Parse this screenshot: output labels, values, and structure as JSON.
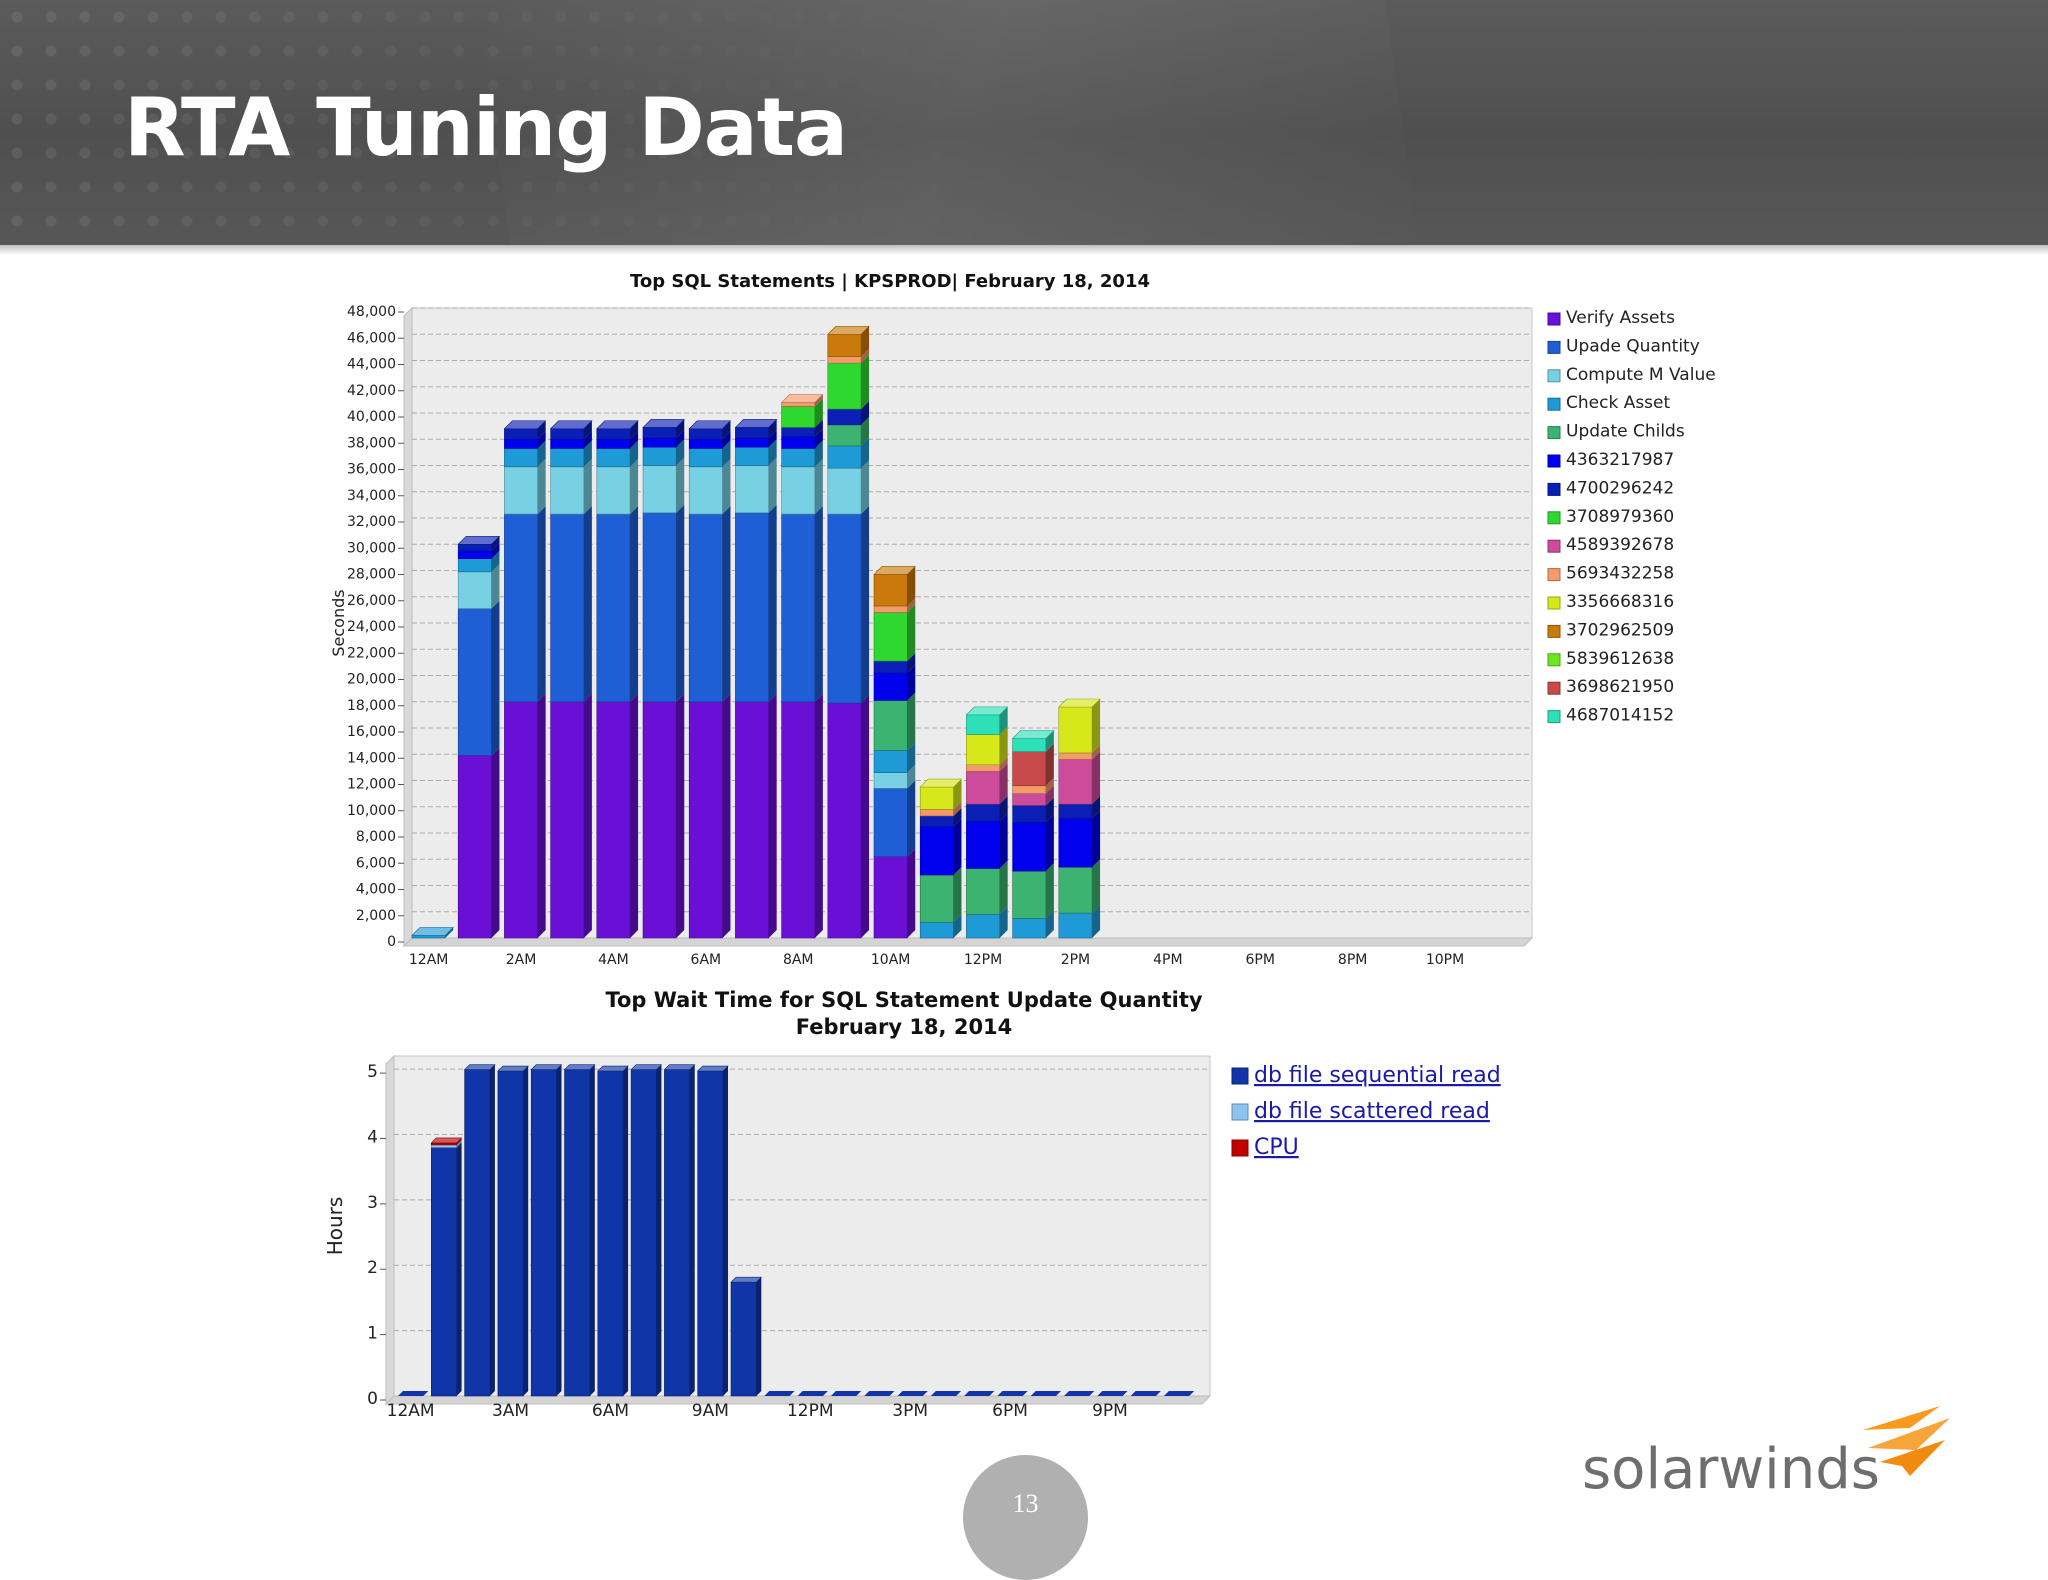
{
  "slide": {
    "title": "RTA Tuning Data",
    "page_number": "13"
  },
  "logo": {
    "text": "solarwinds",
    "colors": {
      "text": "#6e6e6e",
      "flame": "#f79a1e"
    }
  },
  "chart_data": [
    {
      "type": "bar",
      "stacked": true,
      "title": "Top SQL Statements | KPSPROD| February 18, 2014",
      "xlabel": "",
      "ylabel": "Seconds",
      "ylim": [
        0,
        48000
      ],
      "yticks": [
        0,
        2000,
        4000,
        6000,
        8000,
        10000,
        12000,
        14000,
        16000,
        18000,
        20000,
        22000,
        24000,
        26000,
        28000,
        30000,
        32000,
        34000,
        36000,
        38000,
        40000,
        42000,
        44000,
        46000,
        48000
      ],
      "yticks_text": [
        "0",
        "2,000",
        "4,000",
        "6,000",
        "8,000",
        "10,000",
        "12,000",
        "14,000",
        "16,000",
        "18,000",
        "20,000",
        "22,000",
        "24,000",
        "26,000",
        "28,000",
        "30,000",
        "32,000",
        "34,000",
        "36,000",
        "38,000",
        "40,000",
        "42,000",
        "44,000",
        "46,000",
        "48,000"
      ],
      "xtick_labels": [
        "12AM",
        "2AM",
        "4AM",
        "6AM",
        "8AM",
        "10AM",
        "12PM",
        "2PM",
        "4PM",
        "6PM",
        "8PM",
        "10PM"
      ],
      "grid": true,
      "legend_position": "right",
      "categories": [
        "12AM",
        "1AM",
        "2AM",
        "3AM",
        "4AM",
        "5AM",
        "6AM",
        "7AM",
        "8AM",
        "9AM",
        "10AM",
        "11AM",
        "12PM",
        "1PM",
        "2PM",
        "3PM",
        "4PM",
        "5PM",
        "6PM",
        "7PM",
        "8PM",
        "9PM",
        "10PM",
        "11PM"
      ],
      "series": [
        {
          "name": "Verify Assets",
          "color": "#6a0fd6",
          "values": [
            0,
            13900,
            18000,
            18000,
            18000,
            18000,
            18000,
            18000,
            18000,
            17900,
            6200,
            0,
            0,
            0,
            0,
            0,
            0,
            0,
            0,
            0,
            0,
            0,
            0,
            0
          ]
        },
        {
          "name": "Upade Quantity",
          "color": "#1f5fd6",
          "values": [
            0,
            11200,
            14300,
            14300,
            14300,
            14400,
            14300,
            14400,
            14300,
            14400,
            5200,
            0,
            0,
            0,
            0,
            0,
            0,
            0,
            0,
            0,
            0,
            0,
            0,
            0
          ]
        },
        {
          "name": "Compute M Value",
          "color": "#78d0e3",
          "values": [
            0,
            2800,
            3600,
            3600,
            3600,
            3600,
            3600,
            3600,
            3600,
            3500,
            1200,
            0,
            0,
            0,
            0,
            0,
            0,
            0,
            0,
            0,
            0,
            0,
            0,
            0
          ]
        },
        {
          "name": "Check Asset",
          "color": "#1e9ad6",
          "values": [
            200,
            1000,
            1400,
            1400,
            1400,
            1400,
            1400,
            1400,
            1400,
            1700,
            1700,
            1200,
            1800,
            1500,
            1900,
            0,
            0,
            0,
            0,
            0,
            0,
            0,
            0,
            0
          ]
        },
        {
          "name": "Update Childs",
          "color": "#3cb371",
          "values": [
            0,
            0,
            0,
            0,
            0,
            0,
            0,
            0,
            0,
            1600,
            3800,
            3600,
            3500,
            3600,
            3500,
            0,
            0,
            0,
            0,
            0,
            0,
            0,
            0,
            0
          ]
        },
        {
          "name": "4363217987",
          "color": "#0000ee",
          "values": [
            0,
            600,
            700,
            700,
            700,
            700,
            700,
            700,
            900,
            0,
            2100,
            3700,
            3600,
            3700,
            3700,
            0,
            0,
            0,
            0,
            0,
            0,
            0,
            0,
            0
          ]
        },
        {
          "name": "4700296242",
          "color": "#0a1fb5",
          "values": [
            0,
            500,
            800,
            800,
            800,
            800,
            800,
            800,
            700,
            1200,
            900,
            800,
            1300,
            1300,
            1100,
            0,
            0,
            0,
            0,
            0,
            0,
            0,
            0,
            0
          ]
        },
        {
          "name": "3708979360",
          "color": "#2fd82f",
          "values": [
            0,
            0,
            0,
            0,
            0,
            0,
            0,
            0,
            1600,
            3500,
            3700,
            0,
            0,
            0,
            0,
            0,
            0,
            0,
            0,
            0,
            0,
            0,
            0,
            0
          ]
        },
        {
          "name": "4589392678",
          "color": "#cc4b9a",
          "values": [
            0,
            0,
            0,
            0,
            0,
            0,
            0,
            0,
            0,
            0,
            0,
            0,
            2500,
            900,
            3400,
            0,
            0,
            0,
            0,
            0,
            0,
            0,
            0,
            0
          ]
        },
        {
          "name": "5693432258",
          "color": "#f59a6a",
          "values": [
            0,
            0,
            0,
            0,
            0,
            0,
            0,
            0,
            300,
            500,
            500,
            500,
            500,
            600,
            500,
            0,
            0,
            0,
            0,
            0,
            0,
            0,
            0,
            0
          ]
        },
        {
          "name": "3356668316",
          "color": "#d7e81a",
          "values": [
            0,
            0,
            0,
            0,
            0,
            0,
            0,
            0,
            0,
            0,
            0,
            1700,
            2300,
            0,
            3500,
            0,
            0,
            0,
            0,
            0,
            0,
            0,
            0,
            0
          ]
        },
        {
          "name": "3702962509",
          "color": "#c97a0a",
          "values": [
            0,
            0,
            0,
            0,
            0,
            0,
            0,
            0,
            0,
            1700,
            2400,
            0,
            0,
            0,
            0,
            0,
            0,
            0,
            0,
            0,
            0,
            0,
            0,
            0
          ]
        },
        {
          "name": "5839612638",
          "color": "#6de61e",
          "values": [
            0,
            0,
            0,
            0,
            0,
            0,
            0,
            0,
            0,
            0,
            0,
            0,
            0,
            0,
            0,
            0,
            0,
            0,
            0,
            0,
            0,
            0,
            0,
            0
          ]
        },
        {
          "name": "3698621950",
          "color": "#c94a4a",
          "values": [
            0,
            0,
            0,
            0,
            0,
            0,
            0,
            0,
            0,
            0,
            0,
            0,
            0,
            2600,
            0,
            0,
            0,
            0,
            0,
            0,
            0,
            0,
            0,
            0
          ]
        },
        {
          "name": "4687014152",
          "color": "#2ee0b8",
          "values": [
            0,
            0,
            0,
            0,
            0,
            0,
            0,
            0,
            0,
            0,
            0,
            0,
            1500,
            1000,
            0,
            0,
            0,
            0,
            0,
            0,
            0,
            0,
            0,
            0
          ]
        }
      ]
    },
    {
      "type": "bar",
      "stacked": true,
      "title": "Top Wait Time for SQL Statement Update Quantity",
      "subtitle": "February 18, 2014",
      "xlabel": "",
      "ylabel": "Hours",
      "ylim": [
        0,
        5.2
      ],
      "yticks": [
        0,
        1,
        2,
        3,
        4,
        5
      ],
      "yticks_text": [
        "0",
        "1",
        "2",
        "3",
        "4",
        "5"
      ],
      "xtick_labels": [
        "12AM",
        "3AM",
        "6AM",
        "9AM",
        "12PM",
        "3PM",
        "6PM",
        "9PM"
      ],
      "grid": true,
      "legend_position": "right",
      "categories": [
        "12AM",
        "1AM",
        "2AM",
        "3AM",
        "4AM",
        "5AM",
        "6AM",
        "7AM",
        "8AM",
        "9AM",
        "10AM",
        "11AM",
        "12PM",
        "1PM",
        "2PM",
        "3PM",
        "4PM",
        "5PM",
        "6PM",
        "7PM",
        "8PM",
        "9PM",
        "10PM",
        "11PM"
      ],
      "series": [
        {
          "name": "db file sequential read",
          "color": "#0f35a8",
          "values": [
            0,
            3.8,
            4.99,
            4.97,
            4.99,
            4.99,
            4.97,
            4.99,
            4.99,
            4.97,
            1.74,
            0,
            0,
            0,
            0,
            0,
            0,
            0,
            0,
            0,
            0,
            0,
            0,
            0
          ]
        },
        {
          "name": "db file scattered read",
          "color": "#8fc4f0",
          "values": [
            0,
            0.04,
            0,
            0,
            0,
            0,
            0,
            0,
            0,
            0,
            0,
            0,
            0,
            0,
            0,
            0,
            0,
            0,
            0,
            0,
            0,
            0,
            0,
            0
          ]
        },
        {
          "name": "CPU",
          "color": "#c00000",
          "values": [
            0,
            0.03,
            0,
            0,
            0,
            0,
            0,
            0,
            0,
            0,
            0,
            0,
            0,
            0,
            0,
            0,
            0,
            0,
            0,
            0,
            0,
            0,
            0,
            0
          ]
        }
      ]
    }
  ]
}
